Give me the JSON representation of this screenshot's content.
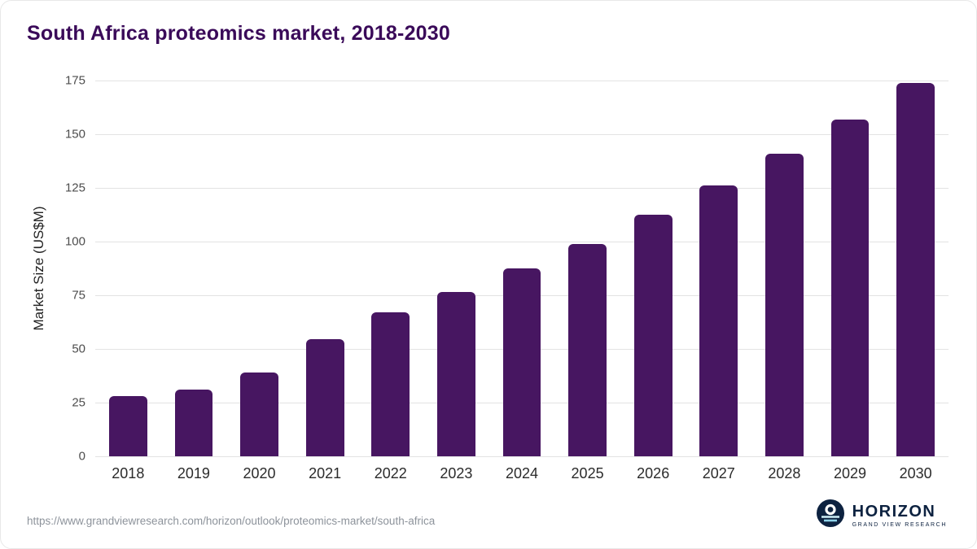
{
  "title": "South Africa proteomics market, 2018-2030",
  "footer": {
    "source_url": "https://www.grandviewresearch.com/horizon/outlook/proteomics-market/south-africa",
    "brand": {
      "name": "HORIZON",
      "subtitle": "GRAND VIEW RESEARCH"
    }
  },
  "colors": {
    "bar": "#471661",
    "title": "#3a0a59",
    "grid": "#e3e3e3",
    "tick_label": "#4d4d4d",
    "brand_navy": "#0d2240",
    "brand_teal": "#8fd4ea"
  },
  "chart_data": {
    "type": "bar",
    "title": "South Africa proteomics market, 2018-2030",
    "categories": [
      "2018",
      "2019",
      "2020",
      "2021",
      "2022",
      "2023",
      "2024",
      "2025",
      "2026",
      "2027",
      "2028",
      "2029",
      "2030"
    ],
    "values": [
      28,
      31,
      39,
      54.5,
      67,
      76.5,
      87.5,
      99,
      112.5,
      126,
      141,
      157,
      174
    ],
    "xlabel": "",
    "ylabel": "Market Size (US$M)",
    "ylim": [
      0,
      175
    ],
    "yticks": [
      0,
      25,
      50,
      75,
      100,
      125,
      150,
      175
    ],
    "grid": true,
    "legend": false
  }
}
